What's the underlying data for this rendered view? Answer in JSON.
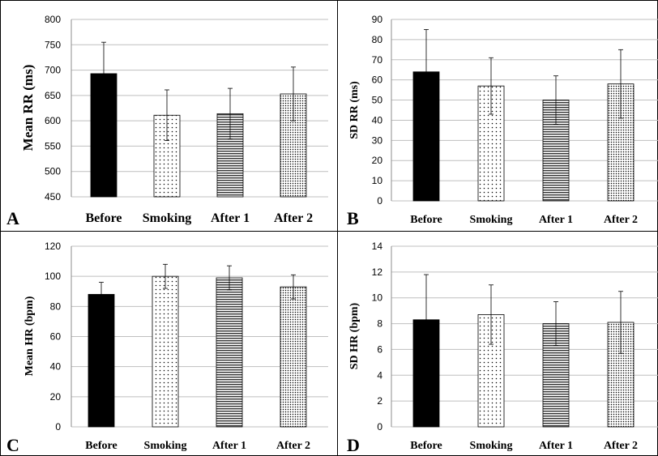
{
  "chart_data": [
    {
      "type": "bar",
      "panel": "A",
      "ylabel": "Mean RR (ms)",
      "categories": [
        "Before",
        "Smoking",
        "After 1",
        "After 2"
      ],
      "ylim": [
        450,
        800
      ],
      "yticks": [
        450,
        500,
        550,
        600,
        650,
        700,
        750,
        800
      ],
      "values": [
        693,
        611,
        614,
        653
      ],
      "errors": [
        62,
        50,
        50,
        53
      ],
      "grid": true
    },
    {
      "type": "bar",
      "panel": "B",
      "ylabel": "SD RR (ms)",
      "categories": [
        "Before",
        "Smoking",
        "After 1",
        "After 2"
      ],
      "ylim": [
        0,
        90
      ],
      "yticks": [
        0,
        10,
        20,
        30,
        40,
        50,
        60,
        70,
        80,
        90
      ],
      "values": [
        64,
        57,
        50,
        58
      ],
      "errors": [
        21,
        14,
        12,
        17
      ],
      "grid": true
    },
    {
      "type": "bar",
      "panel": "C",
      "ylabel": "Mean HR (bpm)",
      "categories": [
        "Before",
        "Smoking",
        "After 1",
        "After 2"
      ],
      "ylim": [
        0,
        120
      ],
      "yticks": [
        0,
        20,
        40,
        60,
        80,
        100,
        120
      ],
      "values": [
        88,
        100,
        99,
        93
      ],
      "errors": [
        8,
        8,
        8,
        8
      ],
      "grid": true
    },
    {
      "type": "bar",
      "panel": "D",
      "ylabel": "SD HR (bpm)",
      "categories": [
        "Before",
        "Smoking",
        "After 1",
        "After 2"
      ],
      "ylim": [
        0,
        14
      ],
      "yticks": [
        0,
        2,
        4,
        6,
        8,
        10,
        12,
        14
      ],
      "values": [
        8.3,
        8.7,
        8.0,
        8.1
      ],
      "errors": [
        3.5,
        2.3,
        1.7,
        2.4
      ],
      "grid": true
    }
  ],
  "bar_styles": [
    "solid-black",
    "sparse-dots",
    "horizontal-stripes",
    "dense-dots"
  ],
  "colors": {
    "bar_fill": "#000000",
    "grid": "#bfbfbf",
    "panel_border": "#000000"
  }
}
